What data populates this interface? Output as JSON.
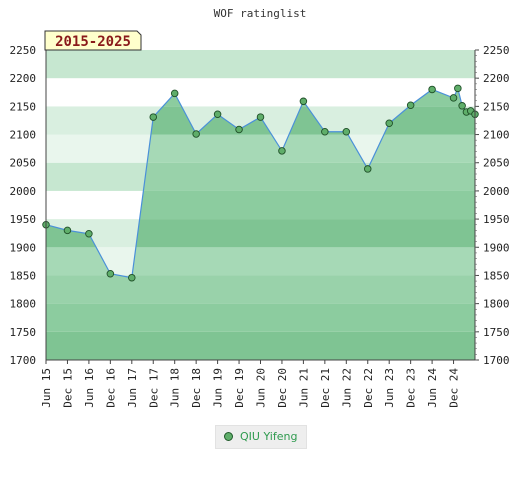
{
  "chart_data": {
    "type": "line",
    "title": "WOF ratinglist",
    "period_label": "2015-2025",
    "y_ticks": [
      1700,
      1750,
      1800,
      1850,
      1900,
      1950,
      2000,
      2050,
      2100,
      2150,
      2200,
      2250
    ],
    "ylim": [
      1700,
      2250
    ],
    "x_tick_labels": [
      "Jun 15",
      "Dec 15",
      "Jun 16",
      "Dec 16",
      "Jun 17",
      "Dec 17",
      "Jun 18",
      "Dec 18",
      "Jun 19",
      "Dec 19",
      "Jun 20",
      "Dec 20",
      "Jun 21",
      "Dec 21",
      "Jun 22",
      "Dec 22",
      "Jun 23",
      "Dec 23",
      "Jun 24",
      "Dec 24"
    ],
    "xlim": [
      2015.5,
      2025.5
    ],
    "series": [
      {
        "name": "QIU Yifeng",
        "x": [
          2015.5,
          2016.0,
          2016.5,
          2017.0,
          2017.5,
          2018.0,
          2018.5,
          2019.0,
          2019.5,
          2020.0,
          2020.5,
          2021.0,
          2021.5,
          2022.0,
          2022.5,
          2023.0,
          2023.5,
          2024.0,
          2024.5,
          2025.0,
          2025.1,
          2025.2,
          2025.3,
          2025.4,
          2025.5
        ],
        "y": [
          1940,
          1930,
          1924,
          1853,
          1846,
          2131,
          2173,
          2101,
          2136,
          2109,
          2131,
          2071,
          2159,
          2105,
          2105,
          2039,
          2120,
          2152,
          2180,
          2165,
          2182,
          2151,
          2140,
          2142,
          2136
        ]
      }
    ],
    "colors": {
      "fill": "#7fc493",
      "line": "#4a90d9",
      "marker_fill": "#5fae6a",
      "marker_stroke": "#1f4f28",
      "badge_bg": "#ffffcc",
      "badge_text": "#8a1a1a"
    },
    "legend": "bottom-center",
    "grid": true
  }
}
